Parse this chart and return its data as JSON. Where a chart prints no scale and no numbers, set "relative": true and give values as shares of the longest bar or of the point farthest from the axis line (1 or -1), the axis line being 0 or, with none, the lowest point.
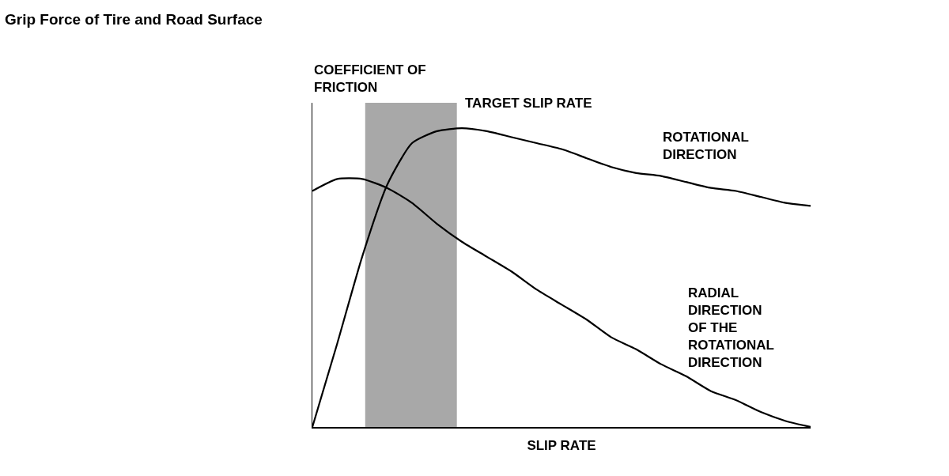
{
  "chart_data": {
    "type": "line",
    "title": "Grip Force of Tire and Road Surface",
    "xlabel": "SLIP RATE",
    "ylabel": "COEFFICIENT OF FRICTION",
    "relative": true,
    "categories": [
      null,
      null,
      null,
      null,
      null,
      null,
      null,
      null,
      null,
      null,
      null,
      null,
      null,
      null,
      null,
      null,
      null,
      null,
      null,
      null,
      null
    ],
    "series": [
      {
        "name": "ROTATIONAL DIRECTION",
        "color": "#000000",
        "values": [
          0,
          0.28,
          0.57,
          0.81,
          0.95,
          0.99,
          1.0,
          0.99,
          0.97,
          0.95,
          0.93,
          0.9,
          0.87,
          0.85,
          0.84,
          0.82,
          0.8,
          0.79,
          0.77,
          0.75,
          0.74
        ]
      },
      {
        "name": "RADIAL DIRECTION OF THE ROTATIONAL DIRECTION",
        "color": "#000000",
        "values": [
          0.79,
          0.83,
          0.83,
          0.8,
          0.75,
          0.68,
          0.62,
          0.57,
          0.52,
          0.46,
          0.41,
          0.36,
          0.3,
          0.26,
          0.21,
          0.17,
          0.12,
          0.09,
          0.05,
          0.02,
          0
        ]
      }
    ],
    "annotations": [
      "TARGET SLIP RATE"
    ],
    "marker": "none",
    "line_style": "solid",
    "grid": false,
    "legend": false
  }
}
